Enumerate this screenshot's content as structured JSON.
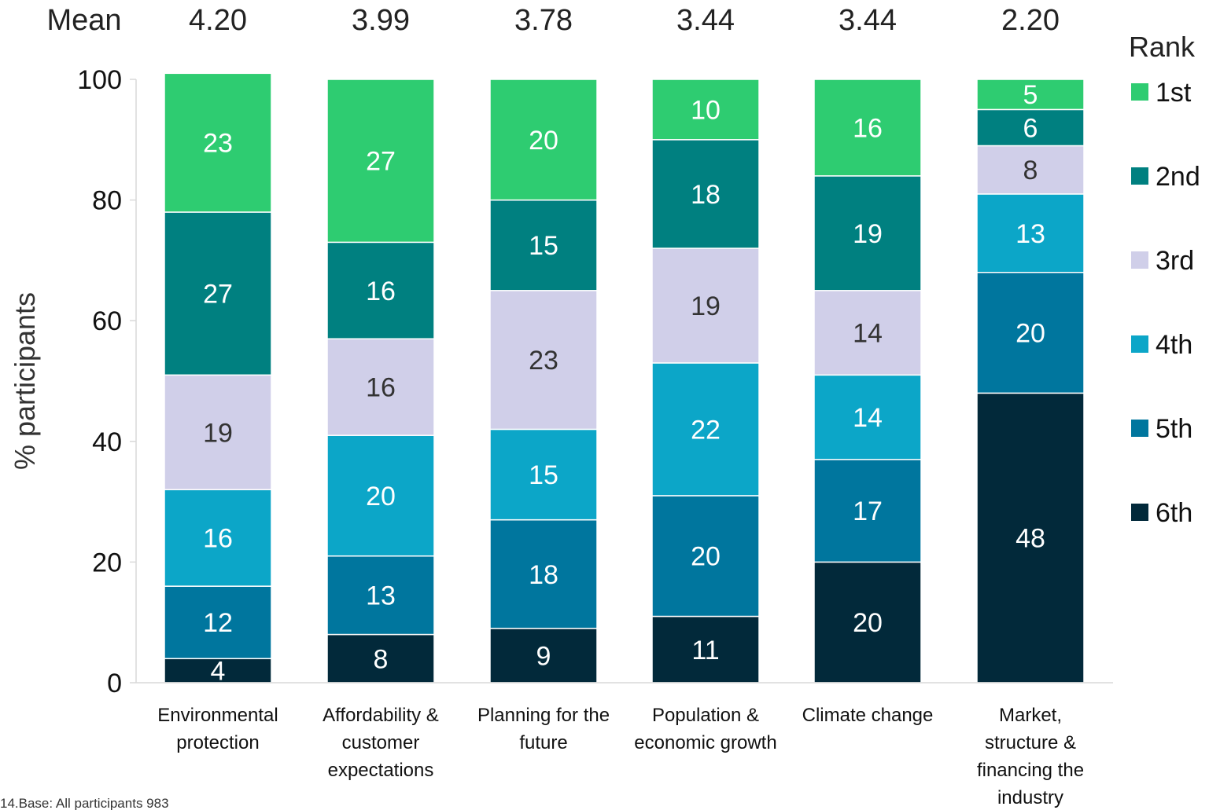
{
  "chart_data": {
    "type": "bar",
    "stacked": true,
    "categories": [
      [
        "Environmental",
        "protection"
      ],
      [
        "Affordability &",
        "customer",
        "expectations"
      ],
      [
        "Planning for the",
        "future"
      ],
      [
        "Population &",
        "economic growth"
      ],
      [
        "Climate change"
      ],
      [
        "Market,",
        "structure &",
        "financing the",
        "industry"
      ]
    ],
    "mean_label": "Mean",
    "means": [
      "4.20",
      "3.99",
      "3.78",
      "3.44",
      "3.44",
      "2.20"
    ],
    "series": [
      {
        "name": "6th",
        "color": "#02293a",
        "label_color": "#ffffff",
        "values": [
          4,
          8,
          9,
          11,
          20,
          48
        ]
      },
      {
        "name": "5th",
        "color": "#00769e",
        "label_color": "#ffffff",
        "values": [
          12,
          13,
          18,
          20,
          17,
          20
        ]
      },
      {
        "name": "4th",
        "color": "#0ca6c8",
        "label_color": "#ffffff",
        "values": [
          16,
          20,
          15,
          22,
          14,
          13
        ]
      },
      {
        "name": "3rd",
        "color": "#d0cfe9",
        "label_color": "#333333",
        "values": [
          19,
          16,
          23,
          19,
          14,
          8
        ]
      },
      {
        "name": "2nd",
        "color": "#008080",
        "label_color": "#ffffff",
        "values": [
          27,
          16,
          15,
          18,
          19,
          6
        ]
      },
      {
        "name": "1st",
        "color": "#2ecc71",
        "label_color": "#ffffff",
        "values": [
          23,
          27,
          20,
          10,
          16,
          5
        ]
      }
    ],
    "title": "",
    "ylabel": "% participants",
    "xlabel": "",
    "ylim": [
      0,
      100
    ],
    "yticks": [
      0,
      20,
      40,
      60,
      80,
      100
    ],
    "grid": false,
    "legend": {
      "title": "Rank",
      "placement": "right",
      "order": [
        "1st",
        "2nd",
        "3rd",
        "4th",
        "5th",
        "6th"
      ]
    },
    "footnote": "14.Base: All participants 983"
  }
}
